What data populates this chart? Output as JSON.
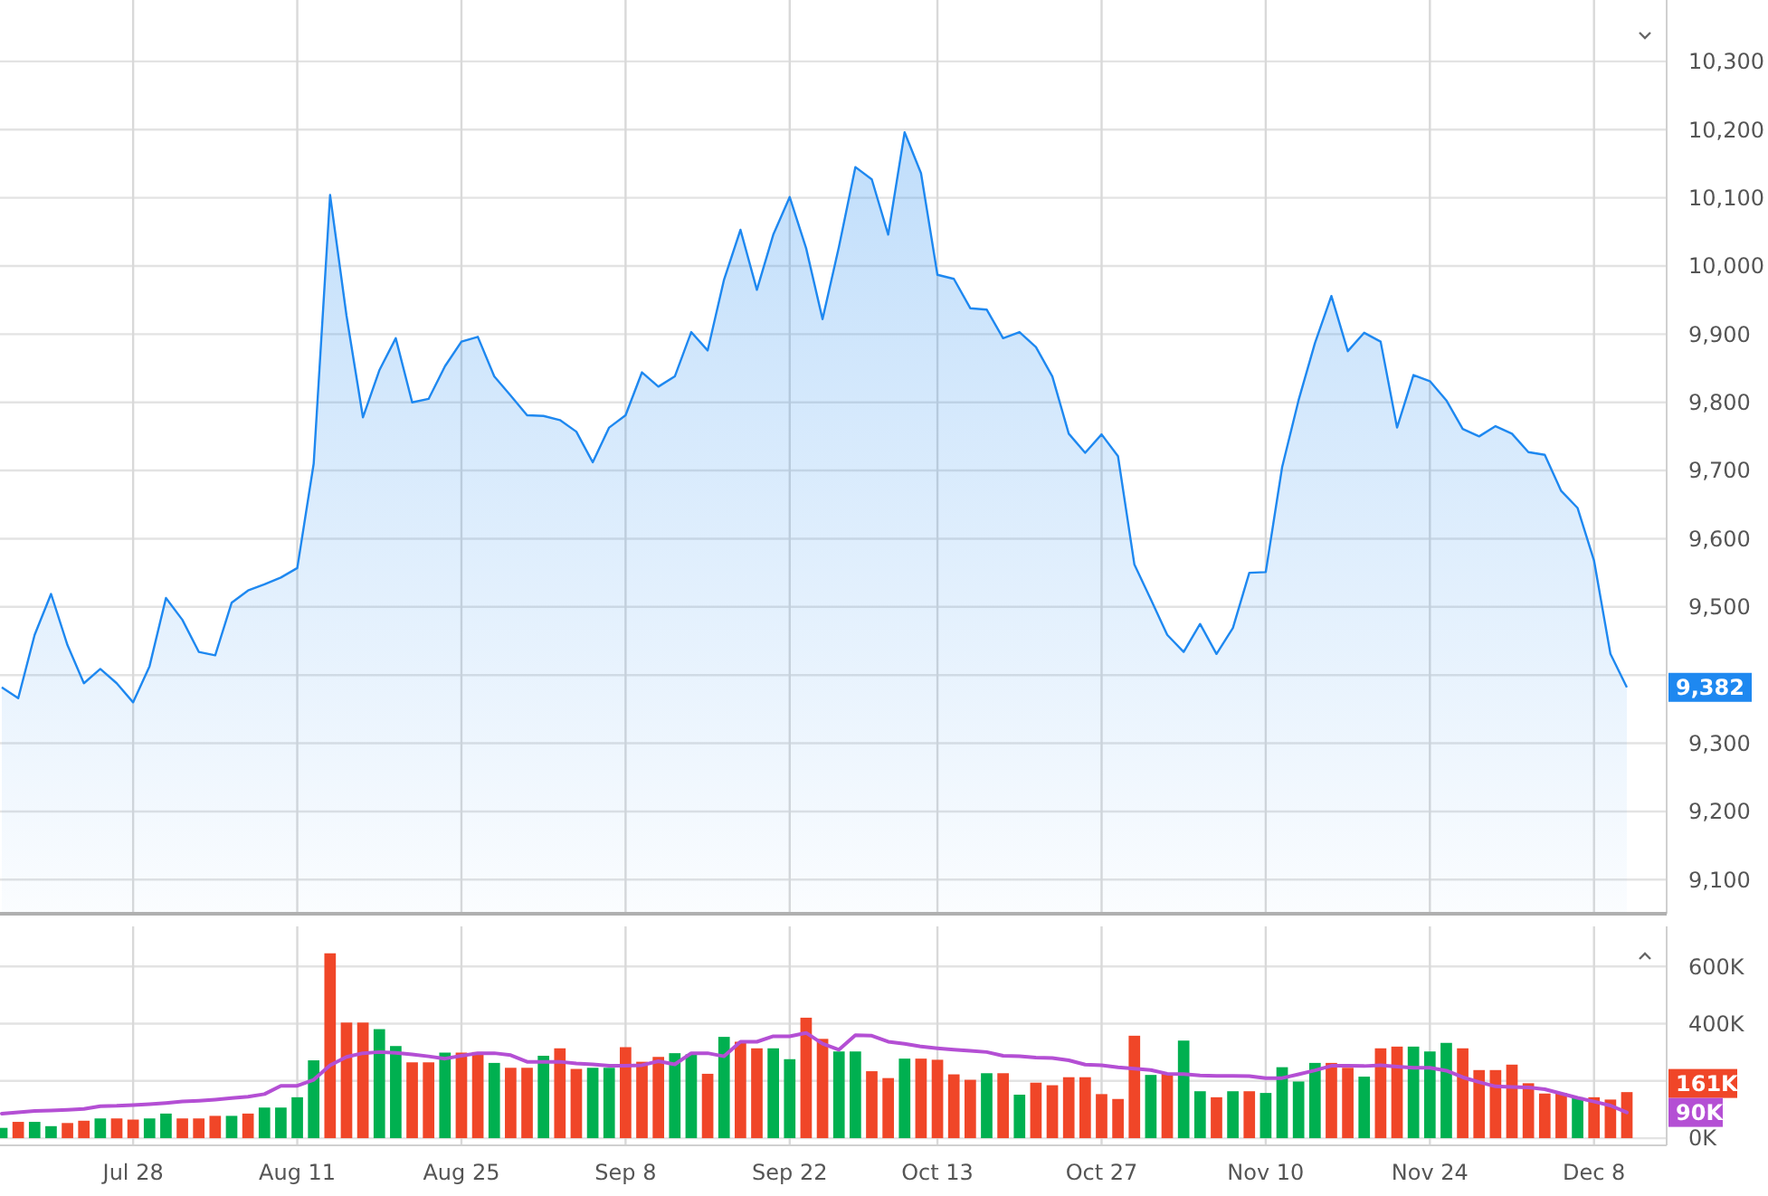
{
  "chart_data": [
    {
      "type": "area",
      "categories": [
        null,
        null,
        null,
        null,
        null,
        null,
        null,
        null,
        null,
        null,
        null,
        null,
        null,
        null,
        null,
        null,
        null,
        null,
        null,
        null,
        null,
        null,
        null,
        null,
        null,
        null,
        null,
        null,
        null,
        null,
        null,
        null,
        null,
        null,
        null,
        null,
        null,
        null,
        null,
        null,
        null,
        null,
        null,
        null,
        null,
        null,
        null,
        null,
        null,
        null,
        null,
        null,
        null,
        null,
        null,
        null,
        null,
        null,
        null,
        null,
        null,
        null,
        null,
        null,
        null,
        null,
        null,
        null,
        null,
        null,
        null,
        null,
        null,
        null,
        null,
        null,
        null,
        null,
        null,
        null,
        null,
        null,
        null,
        null,
        null,
        null,
        null,
        null,
        null,
        null,
        null,
        null,
        null,
        null,
        null,
        null,
        null,
        null,
        null,
        null
      ],
      "series": [
        {
          "color": "#1e88f0",
          "values": [
            9382,
            9366,
            9459,
            9519,
            9444,
            9388,
            9409,
            9388,
            9360,
            9413,
            9513,
            9481,
            9434,
            9429,
            9506,
            9524,
            9533,
            9543,
            9557,
            9710,
            10104,
            9927,
            9778,
            9847,
            9894,
            9800,
            9805,
            9853,
            9889,
            9896,
            9838,
            9810,
            9781,
            9780,
            9774,
            9757,
            9712,
            9763,
            9781,
            9844,
            9823,
            9838,
            9903,
            9876,
            9980,
            10053,
            9965,
            10046,
            10101,
            10026,
            9922,
            10028,
            10145,
            10127,
            10046,
            10196,
            10136,
            9987,
            9981,
            9938,
            9936,
            9894,
            9903,
            9881,
            9838,
            9754,
            9726,
            9753,
            9721,
            9562,
            9511,
            9459,
            9434,
            9475,
            9431,
            9469,
            9550,
            9551,
            9705,
            9803,
            9887,
            9956,
            9875,
            9902,
            9889,
            9763,
            9840,
            9831,
            9803,
            9761,
            9750,
            9765,
            9754,
            9727,
            9723,
            9670,
            9645,
            9568,
            9431,
            9382
          ]
        }
      ],
      "ylim": [
        9050,
        10390
      ],
      "yticks": [
        {
          "value": 9100,
          "label": "9,100"
        },
        {
          "value": 9200,
          "label": "9,200"
        },
        {
          "value": 9300,
          "label": "9,300"
        },
        {
          "value": 9400,
          "label": null
        },
        {
          "value": 9500,
          "label": "9,500"
        },
        {
          "value": 9600,
          "label": "9,600"
        },
        {
          "value": 9700,
          "label": "9,700"
        },
        {
          "value": 9800,
          "label": "9,800"
        },
        {
          "value": 9900,
          "label": "9,900"
        },
        {
          "value": 10000,
          "label": "10,000"
        },
        {
          "value": 10100,
          "label": "10,100"
        },
        {
          "value": 10200,
          "label": "10,200"
        },
        {
          "value": 10300,
          "label": "10,300"
        }
      ],
      "grid": true,
      "tick_labels": "y",
      "annotations": [
        "9,382"
      ]
    },
    {
      "type": "bar",
      "categories": [
        null,
        null,
        null,
        null,
        null,
        null,
        null,
        null,
        "Jul 28",
        null,
        null,
        null,
        null,
        null,
        null,
        null,
        null,
        null,
        "Aug 11",
        null,
        null,
        null,
        null,
        null,
        null,
        null,
        null,
        null,
        "Aug 25",
        null,
        null,
        null,
        null,
        null,
        null,
        null,
        null,
        null,
        "Sep 8",
        null,
        null,
        null,
        null,
        null,
        null,
        null,
        null,
        null,
        "Sep 22",
        null,
        null,
        null,
        null,
        null,
        null,
        null,
        null,
        "Oct 13",
        null,
        null,
        null,
        null,
        null,
        null,
        null,
        null,
        null,
        "Oct 27",
        null,
        null,
        null,
        null,
        null,
        null,
        null,
        null,
        null,
        "Nov 10",
        null,
        null,
        null,
        null,
        null,
        null,
        null,
        null,
        null,
        "Nov 24",
        null,
        null,
        null,
        null,
        null,
        null,
        null,
        null,
        null,
        "Dec 8",
        null,
        null
      ],
      "series": [
        {
          "values": [
            36000,
            57000,
            57000,
            42000,
            53000,
            61000,
            69000,
            69000,
            65000,
            69000,
            86000,
            69000,
            69000,
            78000,
            78000,
            86000,
            107000,
            107000,
            143000,
            272000,
            646000,
            404000,
            404000,
            381000,
            322000,
            265000,
            265000,
            299000,
            299000,
            301000,
            263000,
            246000,
            246000,
            288000,
            314000,
            242000,
            246000,
            246000,
            318000,
            267000,
            284000,
            297000,
            293000,
            225000,
            354000,
            337000,
            314000,
            314000,
            276000,
            421000,
            347000,
            303000,
            303000,
            234000,
            210000,
            278000,
            278000,
            274000,
            223000,
            204000,
            227000,
            227000,
            152000,
            194000,
            185000,
            213000,
            213000,
            154000,
            137000,
            358000,
            221000,
            225000,
            341000,
            164000,
            143000,
            164000,
            164000,
            158000,
            248000,
            198000,
            263000,
            263000,
            246000,
            215000,
            314000,
            320000,
            320000,
            303000,
            333000,
            314000,
            238000,
            238000,
            257000,
            192000,
            156000,
            158000,
            143000,
            143000,
            135000,
            161000
          ],
          "colors": [
            "#00b050",
            "#f04628",
            "#00b050",
            "#00b050",
            "#f04628",
            "#f04628",
            "#00b050",
            "#f04628",
            "#f04628",
            "#00b050",
            "#00b050",
            "#f04628",
            "#f04628",
            "#f04628",
            "#00b050",
            "#f04628",
            "#00b050",
            "#00b050",
            "#00b050",
            "#00b050",
            "#f04628",
            "#f04628",
            "#f04628",
            "#00b050",
            "#00b050",
            "#f04628",
            "#f04628",
            "#00b050",
            "#f04628",
            "#f04628",
            "#00b050",
            "#f04628",
            "#f04628",
            "#00b050",
            "#f04628",
            "#f04628",
            "#00b050",
            "#00b050",
            "#f04628",
            "#f04628",
            "#f04628",
            "#00b050",
            "#00b050",
            "#f04628",
            "#00b050",
            "#f04628",
            "#f04628",
            "#00b050",
            "#00b050",
            "#f04628",
            "#f04628",
            "#00b050",
            "#00b050",
            "#f04628",
            "#f04628",
            "#00b050",
            "#f04628",
            "#f04628",
            "#f04628",
            "#f04628",
            "#00b050",
            "#f04628",
            "#00b050",
            "#f04628",
            "#f04628",
            "#f04628",
            "#f04628",
            "#f04628",
            "#f04628",
            "#f04628",
            "#00b050",
            "#f04628",
            "#00b050",
            "#00b050",
            "#f04628",
            "#00b050",
            "#f04628",
            "#00b050",
            "#00b050",
            "#00b050",
            "#00b050",
            "#f04628",
            "#f04628",
            "#00b050",
            "#f04628",
            "#f04628",
            "#00b050",
            "#00b050",
            "#00b050",
            "#f04628",
            "#f04628",
            "#f04628",
            "#f04628",
            "#f04628",
            "#f04628",
            "#f04628",
            "#00b050",
            "#f04628",
            "#f04628",
            "#f04628"
          ]
        },
        {
          "type": "line",
          "color": "#b44fd4",
          "values": [
            86000,
            90000,
            95000,
            97000,
            99000,
            102000,
            112000,
            113000,
            116000,
            119000,
            123000,
            128000,
            131000,
            135000,
            140000,
            145000,
            154000,
            183000,
            183000,
            204000,
            255000,
            284000,
            297000,
            301000,
            298000,
            293000,
            286000,
            278000,
            288000,
            297000,
            297000,
            290000,
            267000,
            267000,
            267000,
            261000,
            258000,
            253000,
            253000,
            255000,
            269000,
            258000,
            297000,
            297000,
            286000,
            337000,
            337000,
            356000,
            356000,
            368000,
            330000,
            309000,
            360000,
            358000,
            337000,
            330000,
            320000,
            314000,
            309000,
            305000,
            301000,
            288000,
            286000,
            282000,
            280000,
            272000,
            257000,
            255000,
            248000,
            243000,
            238000,
            225000,
            224000,
            219000,
            218000,
            218000,
            217000,
            210000,
            210000,
            223000,
            237000,
            253000,
            253000,
            252000,
            255000,
            250000,
            246000,
            246000,
            236000,
            213000,
            196000,
            181000,
            179000,
            177000,
            171000,
            156000,
            141000,
            128000,
            114000,
            90000
          ]
        }
      ],
      "ylim": [
        -25000,
        740000
      ],
      "yticks": [
        {
          "value": 0,
          "label": "0K"
        },
        {
          "value": 200000,
          "label": null
        },
        {
          "value": 400000,
          "label": "400K"
        },
        {
          "value": 600000,
          "label": "600K"
        }
      ],
      "grid": true,
      "annotations": [
        "161K",
        "90K"
      ]
    }
  ]
}
